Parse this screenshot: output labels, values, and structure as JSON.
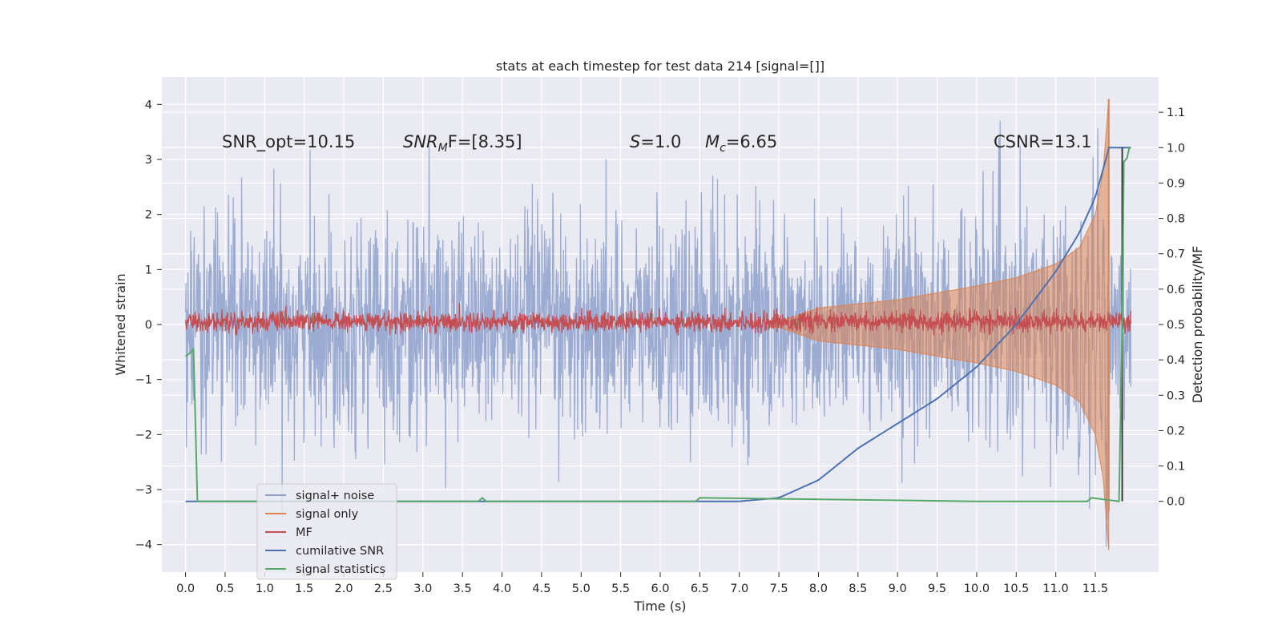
{
  "chart_data": {
    "type": "line",
    "title": "stats at each timestep for test data 214 [signal=[]]",
    "xlabel": "Time (s)",
    "ylabel": "Whitened strain",
    "y2label": "Detection probability/MF",
    "xlim": [
      -0.3,
      12.3
    ],
    "ylim": [
      -4.5,
      4.5
    ],
    "y2lim": [
      -0.2,
      1.2
    ],
    "x_ticks": [
      "0.0",
      "0.5",
      "1.0",
      "1.5",
      "2.0",
      "2.5",
      "3.0",
      "3.5",
      "4.0",
      "4.5",
      "5.0",
      "5.5",
      "6.0",
      "6.5",
      "7.0",
      "7.5",
      "8.0",
      "8.5",
      "9.0",
      "9.5",
      "10.0",
      "10.5",
      "11.0",
      "11.5"
    ],
    "y_ticks": [
      "4",
      "3",
      "2",
      "1",
      "0",
      "−1",
      "−2",
      "−3",
      "−4"
    ],
    "y2_ticks": [
      "1.1",
      "1.0",
      "0.9",
      "0.8",
      "0.7",
      "0.6",
      "0.5",
      "0.4",
      "0.3",
      "0.2",
      "0.1",
      "0.0"
    ],
    "grid": true,
    "legend_position": "lower-left",
    "annotations": {
      "snr_opt": "SNR_opt=10.15",
      "snr_mf_a": "SNR",
      "snr_mf_sub": "M",
      "snr_mf_b": "F=[8.35]",
      "s_var": "S",
      "s_val": "=1.0",
      "mc_var": "M",
      "mc_sub": "c",
      "mc_val": "=6.65",
      "csnr": "CSNR=13.1"
    },
    "series": [
      {
        "name": "signal+ noise",
        "axis": "left",
        "color": "#8da0cb",
        "approx_range": [
          -4.1,
          3.8
        ],
        "typical_envelope": [
          -2.0,
          2.0
        ]
      },
      {
        "name": "signal only",
        "axis": "left",
        "color": "#dd8452",
        "x": [
          0,
          7.5,
          8.0,
          9.0,
          10.0,
          10.5,
          11.0,
          11.3,
          11.5,
          11.6,
          11.67
        ],
        "envelope": [
          0,
          0.05,
          0.3,
          0.45,
          0.7,
          0.85,
          1.1,
          1.4,
          2.0,
          2.8,
          4.1
        ]
      },
      {
        "name": "MF",
        "axis": "left",
        "color": "#c44e52",
        "approx_range": [
          -0.2,
          0.4
        ]
      },
      {
        "name": "cumilative SNR",
        "axis": "right",
        "color": "#4c72b0",
        "x": [
          0,
          7.0,
          7.5,
          8.0,
          8.5,
          9.0,
          9.5,
          10.0,
          10.5,
          11.0,
          11.3,
          11.5,
          11.65,
          11.67,
          11.95
        ],
        "values": [
          0,
          0.0,
          0.01,
          0.06,
          0.15,
          0.22,
          0.29,
          0.38,
          0.5,
          0.65,
          0.76,
          0.86,
          0.98,
          1.0,
          1.0
        ]
      },
      {
        "name": "signal statistics",
        "axis": "right",
        "color": "#55a868",
        "x": [
          0,
          0.06,
          0.1,
          0.15,
          3.7,
          3.75,
          3.8,
          6.45,
          6.5,
          10.0,
          11.4,
          11.45,
          11.8,
          11.84,
          11.86,
          11.9,
          11.93,
          11.95
        ],
        "values": [
          0.41,
          0.42,
          0.43,
          0.0,
          0.0,
          0.01,
          0.0,
          0.0,
          0.01,
          0.0,
          0.0,
          0.01,
          0.0,
          0.5,
          0.96,
          0.97,
          1.0,
          1.0
        ]
      }
    ]
  }
}
